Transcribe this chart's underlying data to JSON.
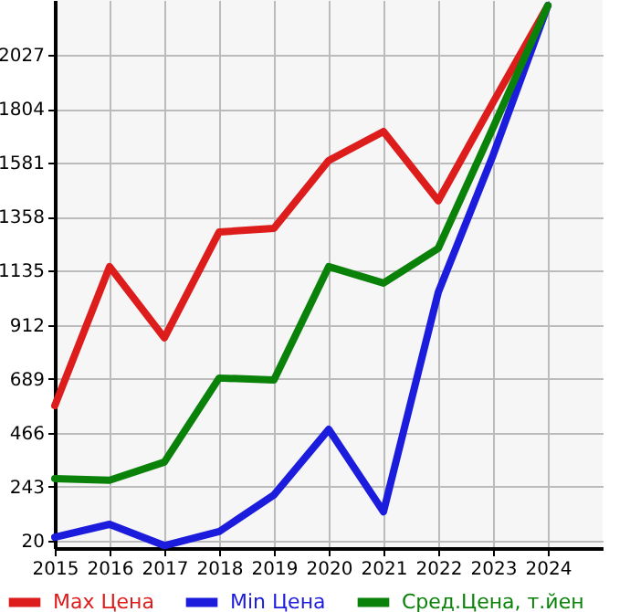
{
  "chart_data": {
    "type": "line",
    "x": [
      2015,
      2016,
      2017,
      2018,
      2019,
      2020,
      2021,
      2022,
      2023,
      2024
    ],
    "series": [
      {
        "name": "Max Цена",
        "color": "#dd1c1c",
        "values": [
          578,
          1152,
          858,
          1295,
          1310,
          1590,
          1710,
          1424,
          1830,
          2230
        ]
      },
      {
        "name": "Min Цена",
        "color": "#1c1cdd",
        "values": [
          35,
          88,
          0,
          58,
          209,
          480,
          140,
          1046,
          1612,
          2230
        ]
      },
      {
        "name": "Сред.Цена, т.йен",
        "color": "#0a820a",
        "values": [
          277,
          270,
          345,
          692,
          684,
          1152,
          1084,
          1228,
          1726,
          2230
        ]
      }
    ],
    "xlim": [
      2015,
      2025
    ],
    "xticks": [
      2015,
      2016,
      2017,
      2018,
      2019,
      2020,
      2021,
      2022,
      2023,
      2024
    ],
    "ylim": [
      -10,
      2253
    ],
    "yticks": [
      20,
      243,
      466,
      689,
      912,
      1135,
      1358,
      1581,
      1804,
      2027
    ],
    "grid": true,
    "legend": "bottom",
    "marker": "none",
    "line_style": "solid"
  }
}
